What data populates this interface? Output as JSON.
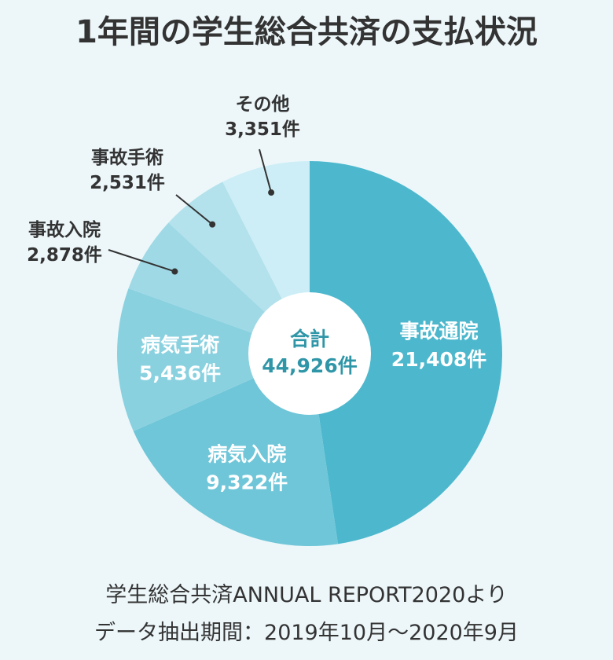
{
  "title": "1年間の学生総合共済の支払状況",
  "footer": {
    "line1": "学生総合共済ANNUAL REPORT2020より",
    "line2": "データ抽出期間：2019年10月～2020年9月"
  },
  "chart_data": {
    "type": "pie",
    "donut": true,
    "title": "1年間の学生総合共済の支払状況",
    "unit": "件",
    "center_label": "合計",
    "center_value": "44,926件",
    "total": 44926,
    "slices": [
      {
        "name": "事故通院",
        "value": 21408,
        "value_label": "21,408件",
        "color": "#4db8cd",
        "label_position": "inside"
      },
      {
        "name": "病気入院",
        "value": 9322,
        "value_label": "9,322件",
        "color": "#6fc6d8",
        "label_position": "inside"
      },
      {
        "name": "病気手術",
        "value": 5436,
        "value_label": "5,436件",
        "color": "#8ad1e0",
        "label_position": "inside"
      },
      {
        "name": "事故入院",
        "value": 2878,
        "value_label": "2,878件",
        "color": "#9fd9e6",
        "label_position": "outside"
      },
      {
        "name": "事故手術",
        "value": 2531,
        "value_label": "2,531件",
        "color": "#b3e2ec",
        "label_position": "outside"
      },
      {
        "name": "その他",
        "value": 3351,
        "value_label": "3,351件",
        "color": "#cdeef6",
        "label_position": "outside"
      }
    ]
  }
}
